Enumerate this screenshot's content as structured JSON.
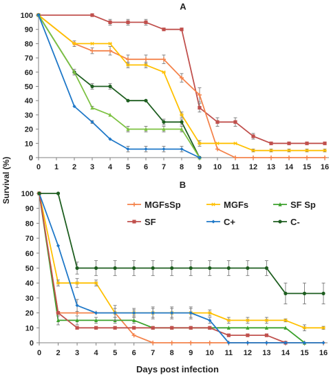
{
  "figure": {
    "ylabel": "Survival (%)",
    "xlabel": "Days post infection"
  },
  "chart_data": [
    {
      "panel": "A",
      "type": "line",
      "title": "A",
      "xlabel": "",
      "ylabel": "",
      "x": [
        0,
        1,
        2,
        3,
        4,
        5,
        6,
        7,
        8,
        9,
        10,
        11,
        12,
        13,
        14,
        15,
        16
      ],
      "xticks": [
        "0",
        "1",
        "2",
        "3",
        "4",
        "5",
        "6",
        "7",
        "8",
        "9",
        "10",
        "11",
        "12",
        "13",
        "14",
        "15",
        "16"
      ],
      "ylim": [
        0,
        100
      ],
      "yticks": [
        0,
        10,
        20,
        30,
        40,
        50,
        60,
        70,
        80,
        90,
        100
      ],
      "grid": false,
      "series": [
        {
          "key": "sf",
          "color": "#c0504d",
          "marker": "square",
          "x": [
            0,
            3,
            4,
            5,
            6,
            7,
            8,
            9,
            10,
            11,
            12,
            13,
            14,
            15,
            16
          ],
          "values": [
            100,
            100,
            95,
            95,
            95,
            90,
            90,
            35,
            25,
            25,
            15,
            10,
            10,
            10,
            10
          ],
          "err": [
            0,
            1,
            2,
            2,
            2,
            0,
            0,
            3,
            3,
            3,
            2,
            0,
            0,
            0,
            0
          ]
        },
        {
          "key": "mgfssp",
          "color": "#f4834b",
          "marker": "plus",
          "x": [
            0,
            2,
            3,
            4,
            5,
            6,
            7,
            8,
            9,
            10,
            11,
            12,
            13,
            14,
            15,
            16
          ],
          "values": [
            100,
            80,
            75,
            75,
            69,
            69,
            69,
            56,
            44,
            6,
            0,
            0,
            0,
            0,
            0,
            0
          ],
          "err": [
            0,
            2,
            2,
            3,
            3,
            3,
            3,
            3,
            5,
            0,
            0,
            0,
            0,
            0,
            0,
            0
          ]
        },
        {
          "key": "mgfs",
          "color": "#ffc000",
          "marker": "star",
          "x": [
            0,
            2,
            3,
            4,
            5,
            6,
            7,
            8,
            9,
            10,
            11,
            12,
            13,
            14,
            15,
            16
          ],
          "values": [
            100,
            80,
            80,
            80,
            65,
            65,
            60,
            30,
            10,
            10,
            10,
            5,
            5,
            5,
            5,
            5
          ],
          "err": [
            0,
            0,
            0,
            0,
            2,
            2,
            0,
            2,
            2,
            0,
            0,
            1,
            1,
            1,
            1,
            1
          ]
        },
        {
          "key": "cminus",
          "color": "#1e5e20",
          "marker": "circle",
          "x": [
            0,
            2,
            3,
            4,
            5,
            6,
            7,
            8,
            9
          ],
          "values": [
            100,
            60,
            50,
            50,
            40,
            40,
            25,
            25,
            0
          ],
          "err": [
            0,
            0,
            2,
            2,
            0,
            0,
            2,
            2,
            0
          ]
        },
        {
          "key": "sfsp",
          "color": "#7dc242",
          "marker": "triangle",
          "x": [
            0,
            2,
            3,
            4,
            5,
            6,
            7,
            8,
            9
          ],
          "values": [
            100,
            60,
            35,
            30,
            20,
            20,
            20,
            20,
            0
          ],
          "err": [
            0,
            2,
            1,
            0,
            2,
            2,
            2,
            2,
            0
          ]
        },
        {
          "key": "cplus",
          "color": "#1f78c8",
          "marker": "diamond",
          "x": [
            0,
            2,
            3,
            4,
            5,
            6,
            7,
            8,
            9
          ],
          "values": [
            100,
            36,
            25,
            13,
            6,
            6,
            6,
            6,
            0
          ],
          "err": [
            0,
            0,
            1,
            0,
            2,
            2,
            2,
            2,
            0
          ]
        }
      ]
    },
    {
      "panel": "B",
      "type": "line",
      "title": "B",
      "xlabel": "Days post infection",
      "ylabel": "",
      "x": [
        0,
        2,
        3,
        4,
        5,
        6,
        7,
        8,
        9,
        10,
        11,
        12,
        13,
        14,
        15,
        16
      ],
      "xticks": [
        "0",
        "2",
        "3",
        "4",
        "5",
        "6",
        "7",
        "8",
        "9",
        "10",
        "11",
        "12",
        "13",
        "14",
        "15",
        "16"
      ],
      "ylim": [
        0,
        100
      ],
      "yticks": [
        0,
        10,
        20,
        30,
        40,
        50,
        60,
        70,
        80,
        90,
        100
      ],
      "grid": false,
      "legend_position": "top",
      "series": [
        {
          "key": "mgfssp",
          "name": "MGFsSp",
          "color": "#f4834b",
          "marker": "plus",
          "x": [
            0,
            2,
            3,
            4,
            5,
            6,
            7,
            8,
            9,
            10,
            11,
            12,
            13,
            14,
            15,
            16
          ],
          "values": [
            100,
            20,
            20,
            20,
            20,
            5,
            0,
            0,
            0,
            0,
            0,
            0,
            0,
            0,
            0,
            0
          ],
          "err": [
            0,
            0,
            0,
            0,
            0,
            0,
            0,
            0,
            0,
            0,
            0,
            0,
            0,
            0,
            0,
            0
          ]
        },
        {
          "key": "mgfs",
          "name": "MGFs",
          "color": "#ffc000",
          "marker": "star",
          "x": [
            0,
            2,
            3,
            4,
            5,
            6,
            7,
            8,
            9,
            10,
            11,
            12,
            13,
            14,
            15,
            16
          ],
          "values": [
            100,
            40,
            40,
            40,
            20,
            20,
            20,
            20,
            20,
            20,
            15,
            15,
            15,
            15,
            10,
            10
          ],
          "err": [
            0,
            2,
            3,
            2,
            3,
            3,
            3,
            3,
            3,
            2,
            2,
            2,
            2,
            1,
            2,
            1
          ]
        },
        {
          "key": "sfsp",
          "name": "SF Sp",
          "color": "#3ba12b",
          "marker": "triangle",
          "x": [
            0,
            2,
            3,
            4,
            5,
            6,
            7,
            8,
            9,
            10,
            11,
            12,
            13,
            14,
            15
          ],
          "values": [
            100,
            15,
            15,
            15,
            15,
            15,
            10,
            10,
            10,
            10,
            10,
            10,
            10,
            10,
            0
          ],
          "err": [
            0,
            3,
            3,
            2,
            2,
            2,
            0,
            0,
            0,
            0,
            0,
            0,
            0,
            0,
            0
          ]
        },
        {
          "key": "sf",
          "name": "SF",
          "color": "#c0504d",
          "marker": "square",
          "x": [
            0,
            2,
            3,
            4,
            5,
            6,
            7,
            8,
            9,
            10,
            11,
            12,
            13,
            14
          ],
          "values": [
            100,
            20,
            10,
            10,
            10,
            10,
            10,
            10,
            10,
            10,
            5,
            5,
            5,
            0
          ],
          "err": [
            0,
            0,
            0,
            0,
            0,
            0,
            0,
            0,
            0,
            0,
            0,
            0,
            0,
            0
          ]
        },
        {
          "key": "cplus",
          "name": "C+",
          "color": "#1f78c8",
          "marker": "diamond",
          "x": [
            0,
            2,
            3,
            4,
            5,
            6,
            7,
            8,
            9,
            10,
            11,
            12,
            13,
            14,
            15,
            16
          ],
          "values": [
            100,
            65,
            25,
            20,
            20,
            20,
            20,
            20,
            20,
            15,
            0,
            0,
            0,
            0,
            0,
            0
          ],
          "err": [
            0,
            0,
            4,
            0,
            5,
            2,
            4,
            4,
            4,
            2,
            0,
            0,
            0,
            0,
            0,
            0
          ]
        },
        {
          "key": "cminus",
          "name": "C-",
          "color": "#1e5e20",
          "marker": "circle",
          "x": [
            0,
            2,
            3,
            4,
            5,
            6,
            7,
            8,
            9,
            10,
            11,
            12,
            13,
            14,
            15,
            16
          ],
          "values": [
            100,
            100,
            50,
            50,
            50,
            50,
            50,
            50,
            50,
            50,
            50,
            50,
            50,
            33,
            33,
            33
          ],
          "err": [
            0,
            0,
            4,
            5,
            5,
            5,
            5,
            5,
            5,
            5,
            5,
            5,
            5,
            7,
            7,
            7
          ]
        }
      ]
    }
  ]
}
